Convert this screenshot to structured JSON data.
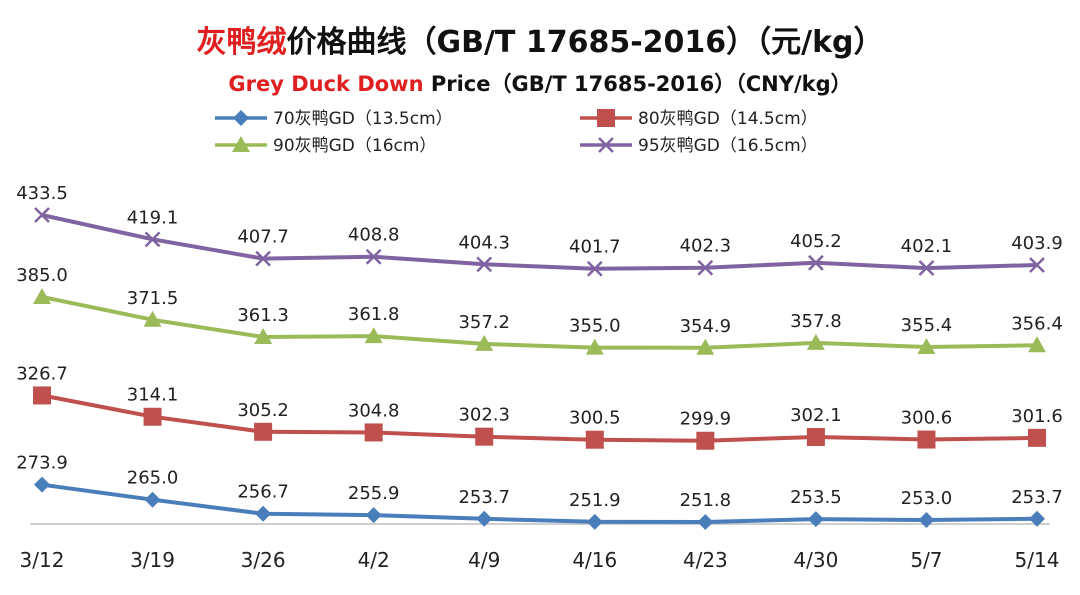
{
  "chart_data": {
    "type": "line",
    "title": {
      "highlight": "灰鸭绒",
      "rest": "价格曲线（GB/T 17685-2016）（元/kg）"
    },
    "subtitle": {
      "highlight": "Grey Duck Down",
      "rest": " Price（GB/T 17685-2016）（CNY/kg）"
    },
    "categories": [
      "3/12",
      "3/19",
      "3/26",
      "4/2",
      "4/9",
      "4/16",
      "4/23",
      "4/30",
      "5/7",
      "5/14"
    ],
    "series": [
      {
        "name": "70灰鸭GD（13.5cm）",
        "color": "#4a7ebb",
        "marker": "diamond",
        "values": [
          273.9,
          265.0,
          256.7,
          255.9,
          253.7,
          251.9,
          251.8,
          253.5,
          253.0,
          253.7
        ]
      },
      {
        "name": "80灰鸭GD（14.5cm）",
        "color": "#c0504d",
        "marker": "square",
        "values": [
          326.7,
          314.1,
          305.2,
          304.8,
          302.3,
          300.5,
          299.9,
          302.1,
          300.6,
          301.6
        ]
      },
      {
        "name": "90灰鸭GD（16cm）",
        "color": "#9bbb59",
        "marker": "triangle",
        "values": [
          385.0,
          371.5,
          361.3,
          361.8,
          357.2,
          355.0,
          354.9,
          357.8,
          355.4,
          356.4
        ]
      },
      {
        "name": "95灰鸭GD（16.5cm）",
        "color": "#8064a2",
        "marker": "x",
        "values": [
          433.5,
          419.1,
          407.7,
          408.8,
          404.3,
          401.7,
          402.3,
          405.2,
          402.1,
          403.9
        ]
      }
    ],
    "ylim": [
      250,
      450
    ],
    "grid": false,
    "legend": "top",
    "colors": {
      "title_highlight": "#e02020",
      "title_text": "#111111"
    }
  }
}
